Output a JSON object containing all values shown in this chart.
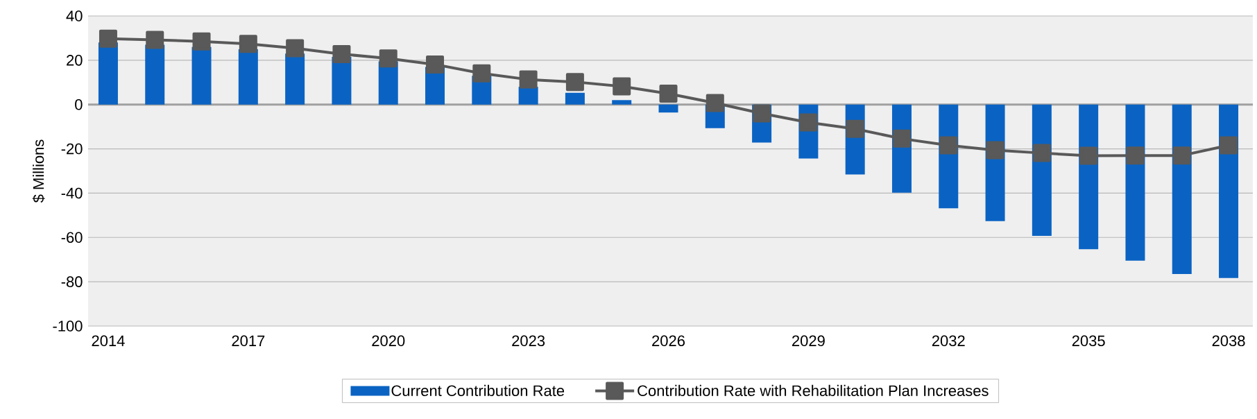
{
  "chart_data": {
    "type": "bar",
    "ylabel": "$ Millions",
    "categories": [
      "2014",
      null,
      null,
      "2017",
      null,
      null,
      "2020",
      null,
      null,
      "2023",
      null,
      null,
      "2026",
      null,
      null,
      "2029",
      null,
      null,
      "2032",
      null,
      null,
      "2035",
      null,
      null,
      "2038"
    ],
    "series": [
      {
        "name": "Current Contribution Rate",
        "color": "#0a63c3",
        "values": [
          28,
          27,
          26,
          25,
          23,
          21.5,
          19.5,
          17,
          13,
          8,
          5.3,
          2,
          -3.6,
          -10.7,
          -17.2,
          -24.4,
          -31.6,
          -39.8,
          -46.8,
          -52.6,
          -59.3,
          -65.3,
          -70.5,
          -76.5,
          -78.3
        ]
      },
      {
        "name": "Contribution Rate with Rehabilitation Plan Increases",
        "type": "line",
        "color": "#595959",
        "marker": "square",
        "values": [
          29.7,
          29.2,
          28.5,
          27.4,
          25.4,
          22.8,
          20.8,
          18.1,
          14.1,
          11.3,
          10.2,
          8.2,
          4.9,
          0.7,
          -4,
          -8.1,
          -11,
          -15.4,
          -18.4,
          -20.6,
          -21.9,
          -23.1,
          -23,
          -23,
          -18.4
        ]
      }
    ],
    "ylim": [
      -100,
      40
    ],
    "yticks": [
      -100,
      -80,
      -60,
      -40,
      -20,
      0,
      20,
      40
    ],
    "grid": "y",
    "legend": "bottom"
  }
}
